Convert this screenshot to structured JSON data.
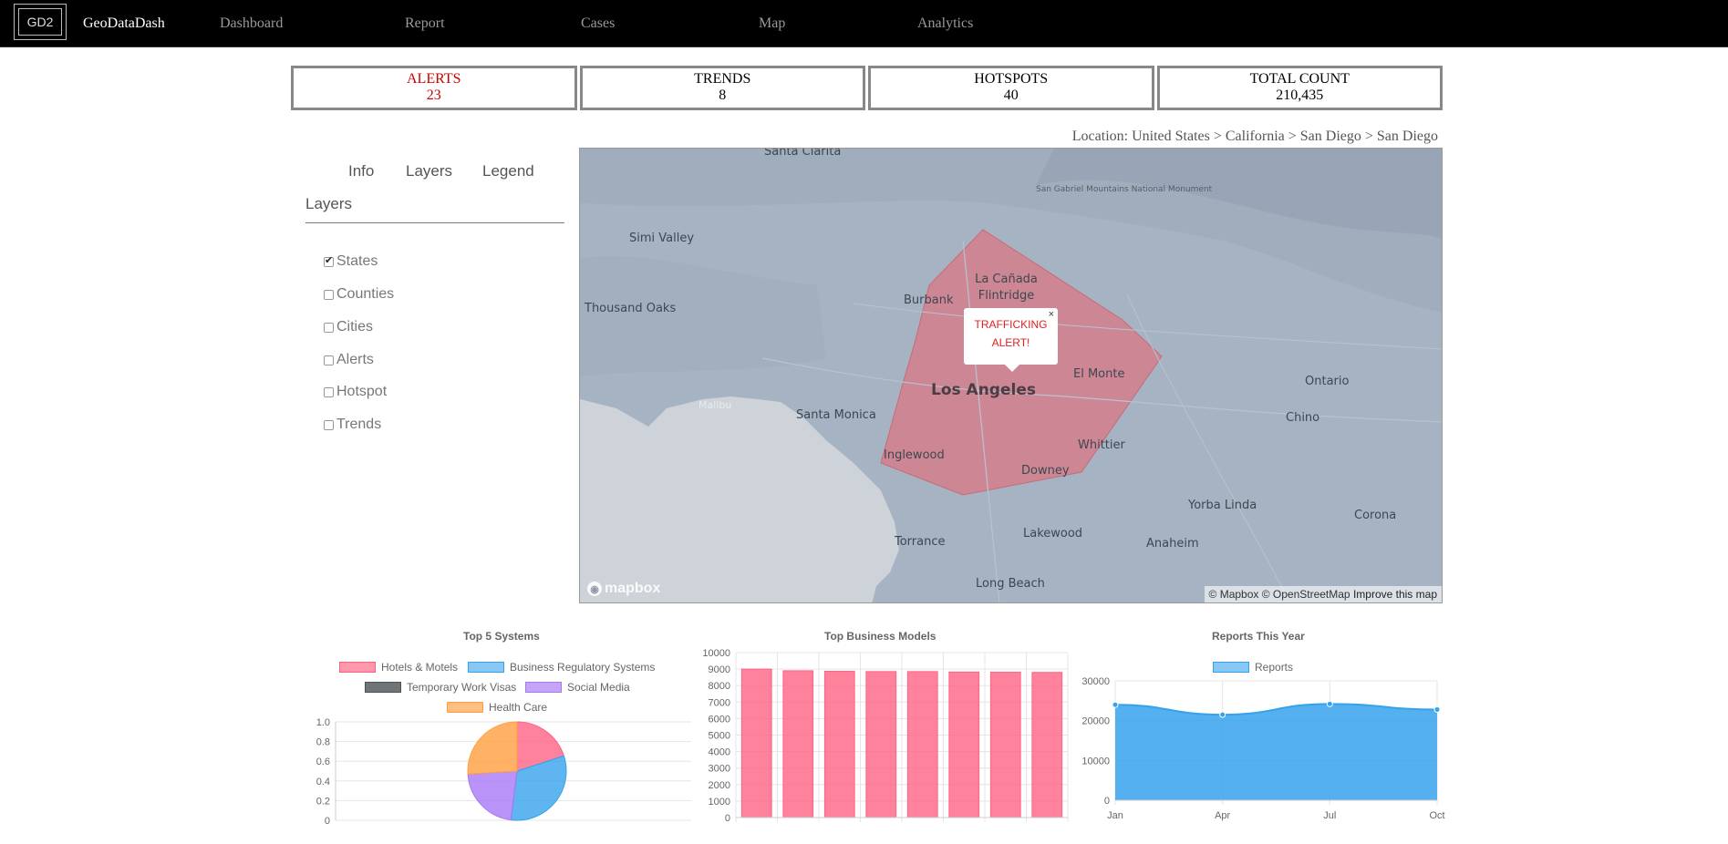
{
  "nav": {
    "logo": "GD2",
    "brand": "GeoDataDash",
    "items": [
      "Dashboard",
      "Report",
      "Cases",
      "Map",
      "Analytics"
    ]
  },
  "stats": [
    {
      "label": "ALERTS",
      "value": "23"
    },
    {
      "label": "TRENDS",
      "value": "8"
    },
    {
      "label": "HOTSPOTS",
      "value": "40"
    },
    {
      "label": "TOTAL COUNT",
      "value": "210,435"
    }
  ],
  "location": "Location: United States > California > San Diego > San Diego",
  "panel": {
    "tabs": [
      "Info",
      "Layers",
      "Legend"
    ],
    "heading": "Layers",
    "layers": [
      {
        "label": "States",
        "checked": true
      },
      {
        "label": "Counties",
        "checked": false
      },
      {
        "label": "Cities",
        "checked": false
      },
      {
        "label": "Alerts",
        "checked": false
      },
      {
        "label": "Hotspot",
        "checked": false
      },
      {
        "label": "Trends",
        "checked": false
      }
    ]
  },
  "map": {
    "labels": {
      "santa_clarita": "Santa Clarita",
      "san_gabriel": "San Gabriel Mountains National Monument",
      "simi_valley": "Simi Valley",
      "thousand_oaks": "Thousand Oaks",
      "burbank": "Burbank",
      "la_canada": "La Cañada Flintridge",
      "los_angeles": "Los Angeles",
      "el_monte": "El Monte",
      "ontario": "Ontario",
      "chino": "Chino",
      "malibu": "Malibu",
      "santa_monica": "Santa Monica",
      "inglewood": "Inglewood",
      "whittier": "Whittier",
      "downey": "Downey",
      "yorba_linda": "Yorba Linda",
      "corona": "Corona",
      "torrance": "Torrance",
      "lakewood": "Lakewood",
      "anaheim": "Anaheim",
      "long_beach": "Long Beach"
    },
    "popup": {
      "line1": "TRAFFICKING",
      "line2": "ALERT!",
      "close": "×"
    },
    "logo": "mapbox",
    "attribution": "© Mapbox © OpenStreetMap",
    "improve": "Improve this map",
    "colors": {
      "land": "#a6b3c2",
      "water": "#cdd3d8",
      "alert_area": "#d97b86"
    }
  },
  "chart_data": [
    {
      "type": "pie",
      "title": "Top 5 Systems",
      "categories": [
        "Hotels & Motels",
        "Business Regulatory Systems",
        "Temporary Work Visas",
        "Social Media",
        "Health Care"
      ],
      "values": [
        20,
        32,
        0,
        22,
        26
      ],
      "colors": [
        "#ff6384",
        "#36a2eb",
        "#4b5154",
        "#a878f5",
        "#ff9f40"
      ],
      "y_ticks": [
        "1.0",
        "0.8",
        "0.6",
        "0.4",
        "0.2",
        "0"
      ]
    },
    {
      "type": "bar",
      "title": "Top Business Models",
      "categories": [
        "",
        "",
        "",
        "",
        "",
        "",
        "",
        ""
      ],
      "values": [
        9000,
        8900,
        8870,
        8850,
        8850,
        8820,
        8810,
        8800
      ],
      "ylim": [
        0,
        10000
      ],
      "y_ticks": [
        10000,
        9000,
        8000,
        7000,
        6000,
        5000,
        4000,
        3000,
        2000,
        1000,
        0
      ],
      "color": "#ff6384"
    },
    {
      "type": "area",
      "title": "Reports This Year",
      "series": [
        {
          "name": "Reports",
          "values": [
            24000,
            21500,
            24200,
            22800
          ]
        }
      ],
      "categories": [
        "Jan",
        "Apr",
        "Jul",
        "Oct"
      ],
      "ylim": [
        0,
        30000
      ],
      "y_ticks": [
        30000,
        20000,
        10000,
        0
      ],
      "color": "#36a2eb"
    }
  ]
}
